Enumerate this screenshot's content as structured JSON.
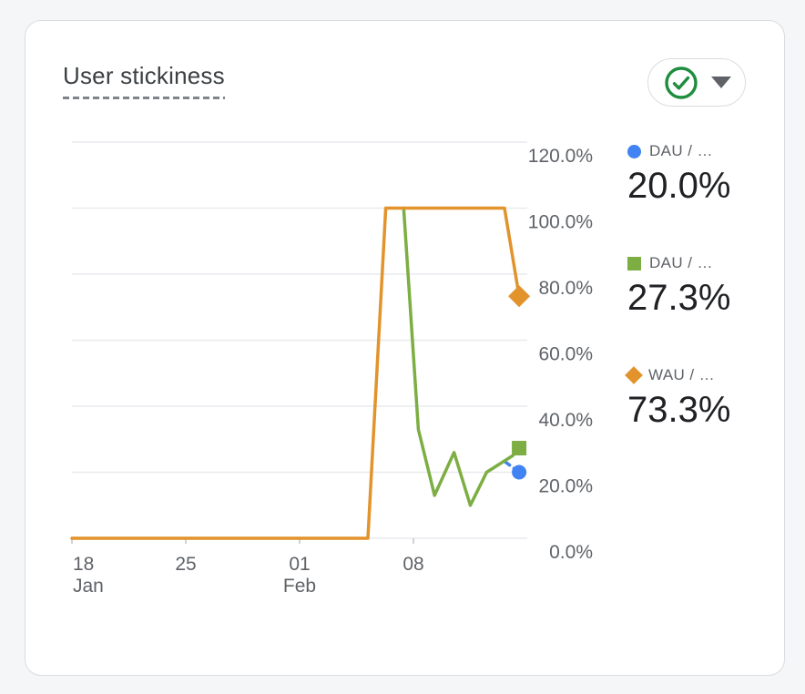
{
  "page": {
    "background": "#F5F6F8"
  },
  "card": {
    "title": "User stickiness",
    "header_button": {
      "status_icon": "check-circle",
      "status_color": "#1E8E3E",
      "dropdown_icon": "caret-down"
    }
  },
  "legend": {
    "items": [
      {
        "label": "DAU / …",
        "value": "20.0%",
        "color": "#4183F2",
        "marker": "circle"
      },
      {
        "label": "DAU / …",
        "value": "27.3%",
        "color": "#7CAE43",
        "marker": "square"
      },
      {
        "label": "WAU / …",
        "value": "73.3%",
        "color": "#E2932C",
        "marker": "diamond"
      }
    ]
  },
  "chart_data": {
    "type": "line",
    "title": "User stickiness",
    "x_axis": {
      "unit": "day_offset_from_jan18",
      "range_days": [
        0,
        28
      ],
      "ticks": [
        {
          "day": 0,
          "label": "18",
          "sublabel": "Jan"
        },
        {
          "day": 7,
          "label": "25",
          "sublabel": ""
        },
        {
          "day": 14,
          "label": "01",
          "sublabel": "Feb"
        },
        {
          "day": 21,
          "label": "08",
          "sublabel": ""
        }
      ]
    },
    "y_axis": {
      "side": "right",
      "min": 0,
      "max": 120,
      "step": 20,
      "labels": [
        "120.0%",
        "100.0%",
        "80.0%",
        "60.0%",
        "40.0%",
        "20.0%",
        "0.0%"
      ]
    },
    "grid": true,
    "legend_position": "right",
    "series": [
      {
        "name": "DAU / …",
        "color": "#4183F2",
        "style": "dashed",
        "marker": "circle",
        "end_value_label": "20.0%",
        "points": [
          {
            "day": 26.6,
            "value": 23.3
          },
          {
            "day": 27.5,
            "value": 20.0
          }
        ]
      },
      {
        "name": "DAU / …",
        "color": "#7CAE43",
        "style": "solid",
        "marker": "square",
        "end_value_label": "27.3%",
        "points": [
          {
            "day": 20.4,
            "value": 100
          },
          {
            "day": 21.3,
            "value": 33
          },
          {
            "day": 22.3,
            "value": 13
          },
          {
            "day": 23.5,
            "value": 26
          },
          {
            "day": 24.5,
            "value": 10
          },
          {
            "day": 25.5,
            "value": 20
          },
          {
            "day": 27.1,
            "value": 25
          },
          {
            "day": 27.5,
            "value": 27.3
          }
        ]
      },
      {
        "name": "WAU / …",
        "color": "#E2932C",
        "style": "solid",
        "marker": "diamond",
        "end_value_label": "73.3%",
        "points": [
          {
            "day": 0,
            "value": 0
          },
          {
            "day": 18.2,
            "value": 0
          },
          {
            "day": 19.3,
            "value": 100
          },
          {
            "day": 26.6,
            "value": 100
          },
          {
            "day": 27.5,
            "value": 73.3
          }
        ]
      }
    ]
  }
}
